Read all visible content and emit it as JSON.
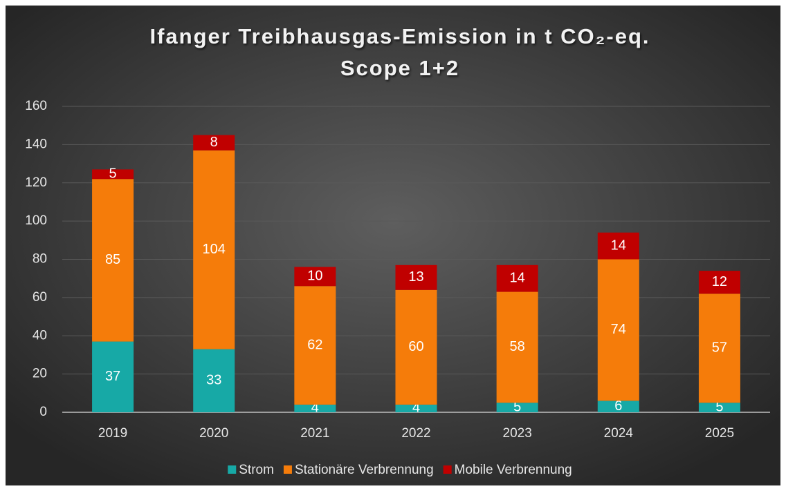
{
  "chart_data": {
    "type": "stacked_bar",
    "title": "Ifanger Treibhausgas-Emission in t CO₂-eq.",
    "subtitle": "Scope 1+2",
    "categories": [
      "2019",
      "2020",
      "2021",
      "2022",
      "2023",
      "2024",
      "2025"
    ],
    "series": [
      {
        "name": "Strom",
        "color": "#17a9a6",
        "values": [
          37,
          33,
          4,
          4,
          5,
          6,
          5
        ]
      },
      {
        "name": "Stationäre Verbrennung",
        "color": "#f57c0a",
        "values": [
          85,
          104,
          62,
          60,
          58,
          74,
          57
        ]
      },
      {
        "name": "Mobile Verbrennung",
        "color": "#c00000",
        "values": [
          5,
          8,
          10,
          13,
          14,
          14,
          12
        ]
      }
    ],
    "ylim": [
      0,
      160
    ],
    "yticks": [
      0,
      20,
      40,
      60,
      80,
      100,
      120,
      140,
      160
    ],
    "grid": true,
    "legend": "bottom"
  }
}
